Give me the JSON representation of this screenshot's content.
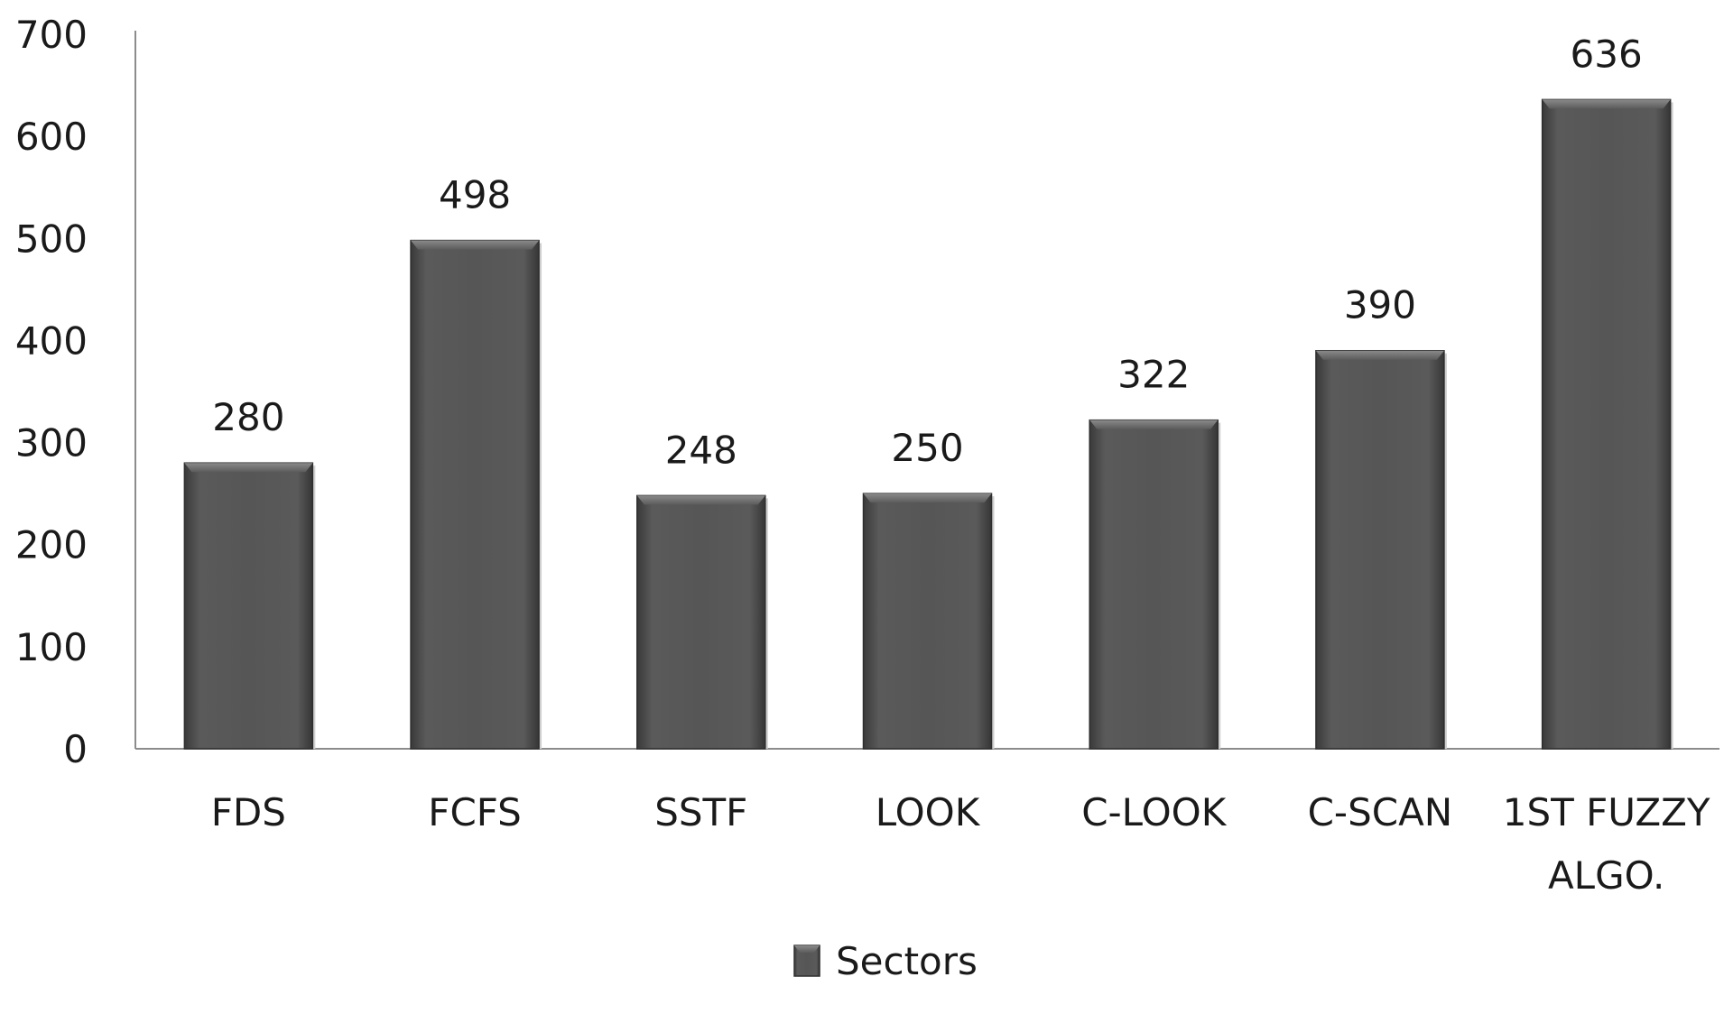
{
  "chart_data": {
    "type": "bar",
    "categories": [
      "FDS",
      "FCFS",
      "SSTF",
      "LOOK",
      "C-LOOK",
      "C-SCAN",
      "1ST FUZZY ALGO."
    ],
    "category_lines": [
      [
        "FDS"
      ],
      [
        "FCFS"
      ],
      [
        "SSTF"
      ],
      [
        "LOOK"
      ],
      [
        "C-LOOK"
      ],
      [
        "C-SCAN"
      ],
      [
        "1ST FUZZY",
        "ALGO."
      ]
    ],
    "series": [
      {
        "name": "Sectors",
        "values": [
          280,
          498,
          248,
          250,
          322,
          390,
          636
        ]
      }
    ],
    "data_labels": [
      "280",
      "498",
      "248",
      "250",
      "322",
      "390",
      "636"
    ],
    "yticks": [
      0,
      100,
      200,
      300,
      400,
      500,
      600,
      700
    ],
    "ylim": [
      0,
      700
    ],
    "title": "",
    "xlabel": "",
    "ylabel": "",
    "grid": false,
    "legend_position": "bottom",
    "colors": {
      "bar": "#555555",
      "bar_dark": "#3a3a3a",
      "bar_light": "#6e6e6e",
      "axis": "#8c8c8c"
    }
  }
}
